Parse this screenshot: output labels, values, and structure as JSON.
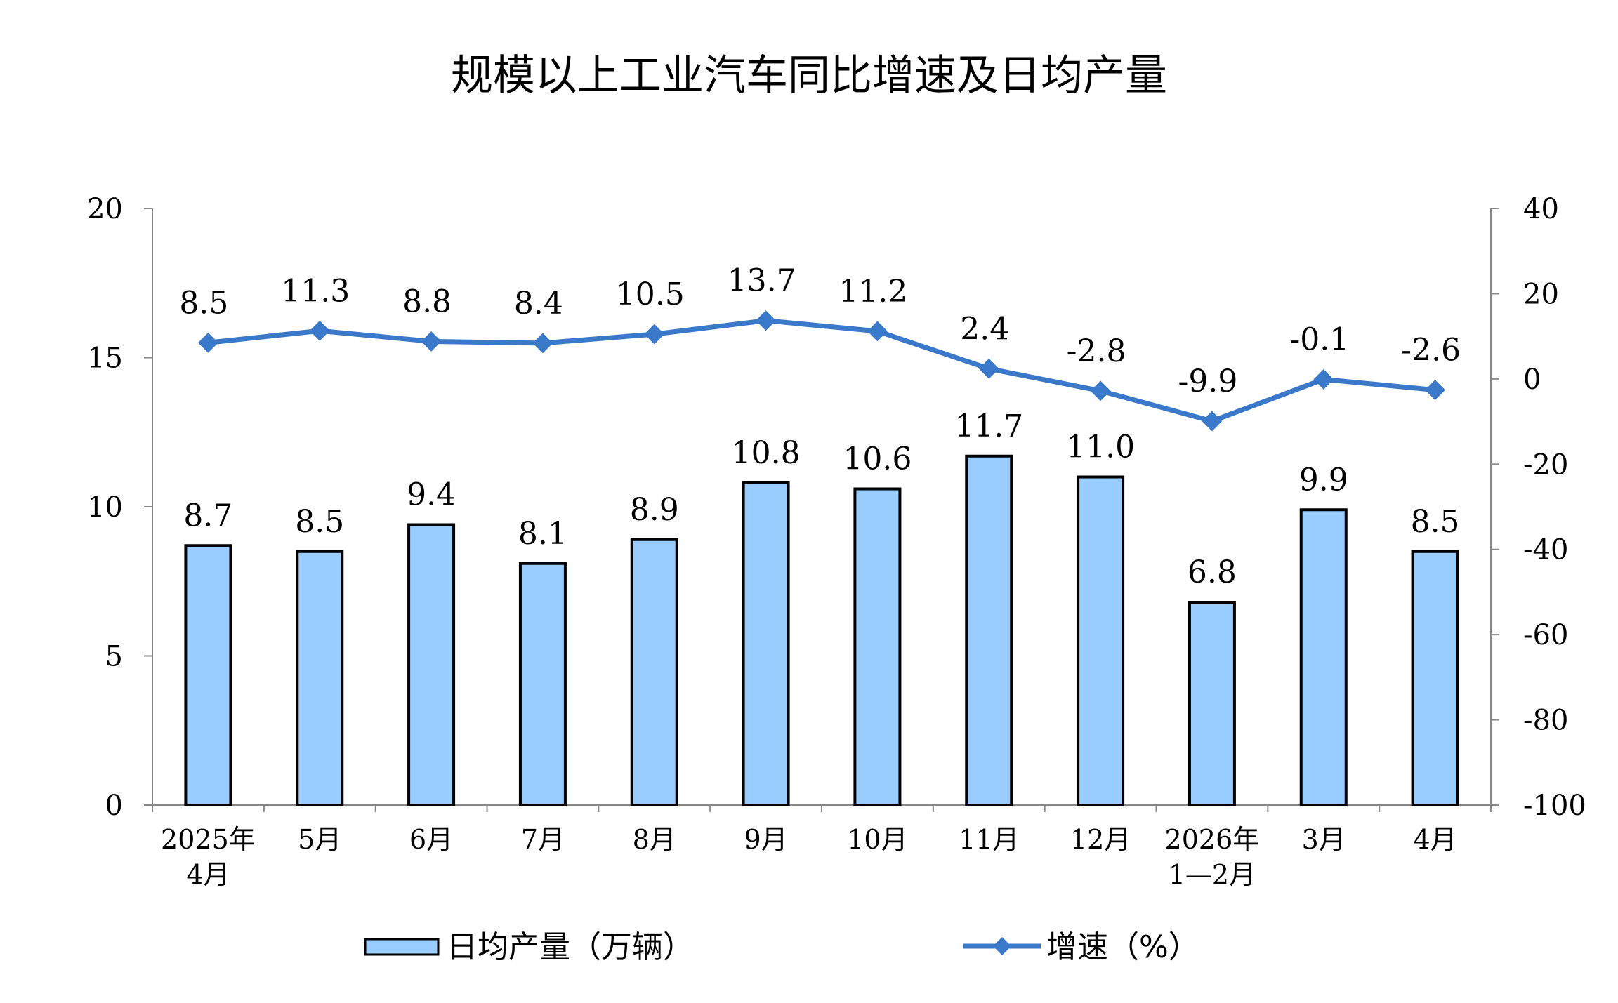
{
  "chart_data": {
    "type": "bar",
    "title": "规模以上工业汽车同比增速及日均产量",
    "categories": [
      [
        "2025年",
        "4月"
      ],
      [
        "5月"
      ],
      [
        "6月"
      ],
      [
        "7月"
      ],
      [
        "8月"
      ],
      [
        "9月"
      ],
      [
        "10月"
      ],
      [
        "11月"
      ],
      [
        "12月"
      ],
      [
        "2026年",
        "1—2月"
      ],
      [
        "3月"
      ],
      [
        "4月"
      ]
    ],
    "series": [
      {
        "name": "日均产量（万辆）",
        "type": "bar",
        "axis": "left",
        "values": [
          8.7,
          8.5,
          9.4,
          8.1,
          8.9,
          10.8,
          10.6,
          11.7,
          11.0,
          6.8,
          9.9,
          8.5
        ],
        "labels": [
          "8.7",
          "8.5",
          "9.4",
          "8.1",
          "8.9",
          "10.8",
          "10.6",
          "11.7",
          "11.0",
          "6.8",
          "9.9",
          "8.5"
        ],
        "color": "#99ccff"
      },
      {
        "name": "增速（%）",
        "type": "line",
        "axis": "right",
        "values": [
          8.5,
          11.3,
          8.8,
          8.4,
          10.5,
          13.7,
          11.2,
          2.4,
          -2.8,
          -9.9,
          -0.1,
          -2.6
        ],
        "labels": [
          "8.5",
          "11.3",
          "8.8",
          "8.4",
          "10.5",
          "13.7",
          "11.2",
          "2.4",
          "-2.8",
          "-9.9",
          "-0.1",
          "-2.6"
        ],
        "color": "#3a78c9"
      }
    ],
    "y_left": {
      "range": [
        0,
        20
      ],
      "ticks": [
        "0",
        "5",
        "10",
        "15",
        "20"
      ]
    },
    "y_right": {
      "range": [
        -100,
        40
      ],
      "ticks": [
        "-100",
        "-80",
        "-60",
        "-40",
        "-20",
        "0",
        "20",
        "40"
      ]
    },
    "grid": false,
    "legend": "bottom"
  }
}
